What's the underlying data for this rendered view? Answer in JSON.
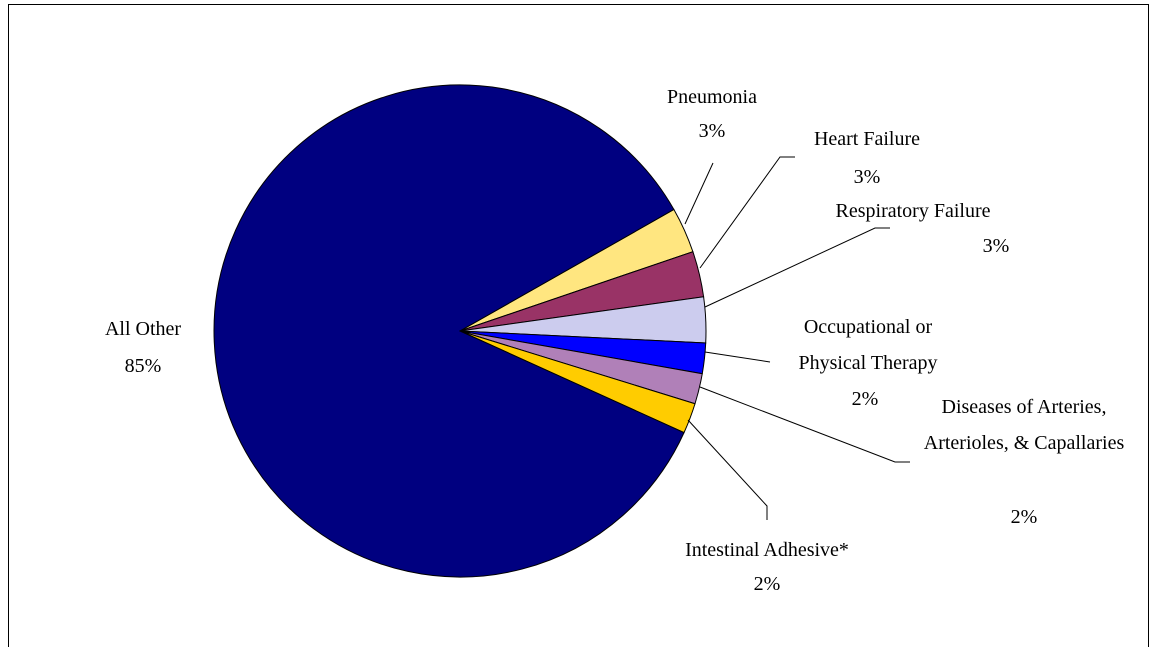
{
  "chart_data": {
    "type": "pie",
    "categories": [
      "Pneumonia",
      "Heart Failure",
      "Respiratory Failure",
      "Occupational or Physical Therapy",
      "Diseases of Arteries, Arterioles, & Capallaries",
      "Intestinal Adhesive*",
      "All Other"
    ],
    "values": [
      3,
      3,
      3,
      2,
      2,
      2,
      85
    ],
    "value_labels": [
      "3%",
      "3%",
      "3%",
      "2%",
      "2%",
      "2%",
      "85%"
    ],
    "colors": [
      "#ffe680",
      "#993366",
      "#ccccee",
      "#0000ff",
      "#b080b8",
      "#ffcc00",
      "#000080"
    ]
  }
}
